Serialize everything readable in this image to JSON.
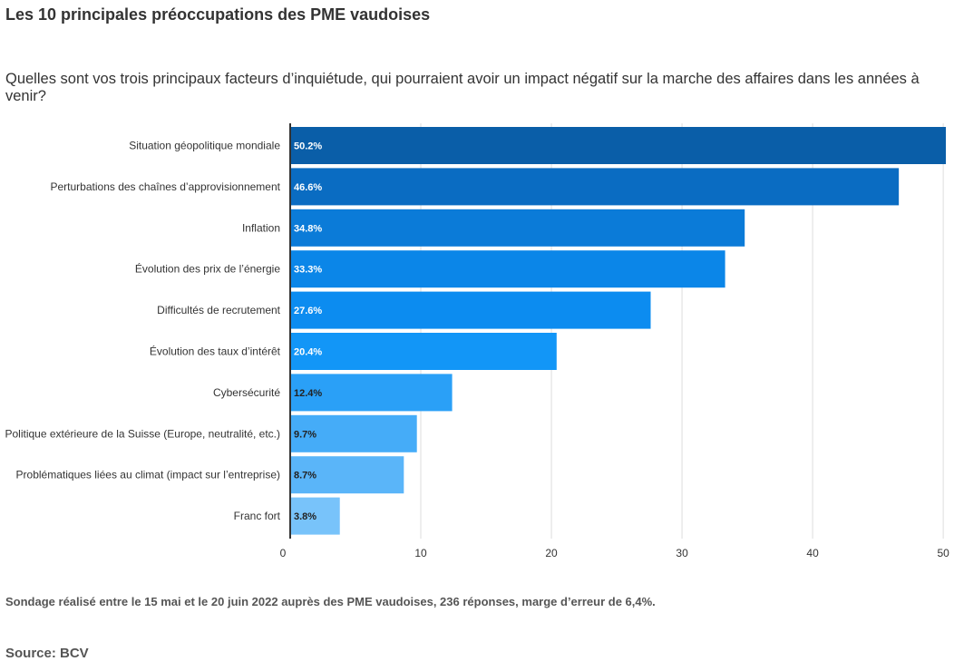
{
  "chart_data": {
    "type": "bar",
    "orientation": "horizontal",
    "title": "Les 10 principales préoccupations des PME vaudoises",
    "subtitle": "Quelles sont vos trois principaux facteurs d’inquiétude, qui pourraient avoir un impact négatif sur la marche des affaires dans les années à venir?",
    "categories": [
      "Situation géopolitique mondiale",
      "Perturbations des chaînes d’approvisionnement",
      "Inflation",
      "Évolution des prix de l’énergie",
      "Difficultés de recrutement",
      "Évolution des taux d’intérêt",
      "Cybersécurité",
      "Politique extérieure de la Suisse (Europe, neutralité, etc.)",
      "Problématiques liées au climat (impact sur l’entreprise)",
      "Franc fort"
    ],
    "values": [
      50.2,
      46.6,
      34.8,
      33.3,
      27.6,
      20.4,
      12.4,
      9.7,
      8.7,
      3.8
    ],
    "value_labels": [
      "50.2%",
      "46.6%",
      "34.8%",
      "33.3%",
      "27.6%",
      "20.4%",
      "12.4%",
      "9.7%",
      "8.7%",
      "3.8%"
    ],
    "bar_colors": [
      "#0a5ea8",
      "#0a6cc2",
      "#0b7bd8",
      "#0b86e8",
      "#0c8cf0",
      "#1296f7",
      "#2aa0f7",
      "#45acf8",
      "#5ab5f9",
      "#78c3fa"
    ],
    "value_label_colors": [
      "#ffffff",
      "#ffffff",
      "#ffffff",
      "#ffffff",
      "#ffffff",
      "#ffffff",
      "#222222",
      "#222222",
      "#222222",
      "#222222"
    ],
    "xlim": [
      0,
      50.2
    ],
    "xticks": [
      0,
      10,
      20,
      30,
      40,
      50
    ],
    "grid": true
  },
  "footnote": "Sondage réalisé entre le 15 mai et le 20 juin 2022 auprès des PME vaudoises, 236 réponses, marge d’erreur de 6,4%.",
  "source": "Source: BCV"
}
